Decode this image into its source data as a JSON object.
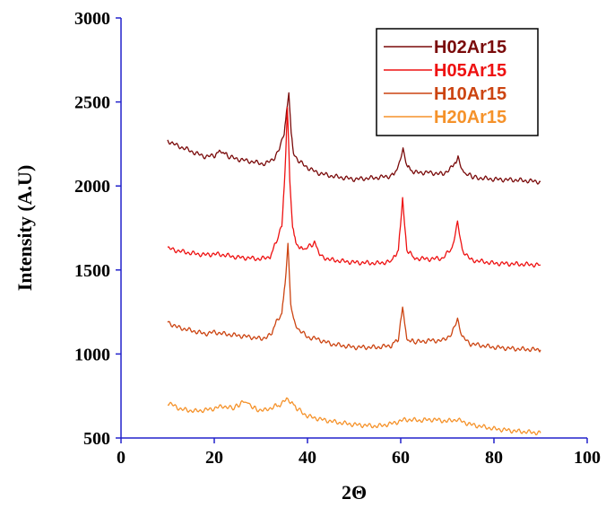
{
  "chart_data": {
    "type": "line",
    "xlabel": "2Θ",
    "ylabel": "Intensity (A.U)",
    "xlim": [
      0,
      100
    ],
    "ylim": [
      500,
      3000
    ],
    "xticks": [
      "0",
      "20",
      "40",
      "60",
      "80",
      "100"
    ],
    "yticks": [
      "500",
      "1000",
      "1500",
      "2000",
      "2500",
      "3000"
    ],
    "grid": false,
    "legend_position": "top-right",
    "axis_color": "#2222cc",
    "series": [
      {
        "name": "H02Ar15",
        "color": "#7a0a0a",
        "x": [
          10,
          12,
          14,
          16,
          18,
          20,
          21.5,
          23,
          25,
          27,
          29,
          31,
          33,
          34,
          35,
          35.5,
          36,
          36.5,
          37,
          38,
          40,
          42,
          45,
          50,
          55,
          58,
          59.5,
          60.5,
          61.5,
          63,
          66,
          69,
          71,
          72.3,
          73.5,
          76,
          80,
          85,
          90
        ],
        "y": [
          2270,
          2240,
          2220,
          2195,
          2175,
          2180,
          2210,
          2175,
          2160,
          2150,
          2140,
          2130,
          2170,
          2220,
          2320,
          2450,
          2560,
          2330,
          2200,
          2150,
          2110,
          2080,
          2060,
          2040,
          2050,
          2060,
          2110,
          2220,
          2110,
          2080,
          2080,
          2070,
          2110,
          2165,
          2080,
          2050,
          2040,
          2035,
          2025
        ]
      },
      {
        "name": "H05Ar15",
        "color": "#ee1111",
        "x": [
          10,
          12,
          15,
          18,
          20,
          22,
          25,
          28,
          30,
          32,
          33.5,
          34.5,
          35.2,
          35.7,
          36.2,
          36.8,
          37.5,
          39,
          41.5,
          43,
          45,
          50,
          55,
          58,
          59.5,
          60.4,
          61.3,
          63,
          66,
          69,
          71,
          72.2,
          73.2,
          75,
          80,
          85,
          90
        ],
        "y": [
          1630,
          1615,
          1600,
          1590,
          1595,
          1590,
          1575,
          1570,
          1565,
          1580,
          1680,
          1760,
          2100,
          2480,
          2050,
          1750,
          1660,
          1620,
          1660,
          1580,
          1560,
          1545,
          1540,
          1550,
          1620,
          1920,
          1620,
          1570,
          1565,
          1570,
          1630,
          1780,
          1620,
          1560,
          1540,
          1535,
          1530
        ]
      },
      {
        "name": "H10Ar15",
        "color": "#cc4411",
        "x": [
          10,
          12,
          15,
          18,
          20,
          22,
          25,
          28,
          30,
          32,
          33.5,
          34.5,
          35.2,
          35.8,
          36.4,
          37,
          38,
          40,
          42,
          45,
          50,
          55,
          58,
          59.5,
          60.4,
          61.3,
          63,
          66,
          69,
          71,
          72.2,
          73.2,
          75,
          80,
          85,
          90
        ],
        "y": [
          1190,
          1160,
          1140,
          1120,
          1130,
          1120,
          1110,
          1100,
          1090,
          1110,
          1200,
          1240,
          1420,
          1660,
          1300,
          1200,
          1150,
          1100,
          1090,
          1060,
          1040,
          1040,
          1050,
          1090,
          1280,
          1090,
          1070,
          1080,
          1080,
          1120,
          1210,
          1100,
          1060,
          1040,
          1030,
          1025
        ]
      },
      {
        "name": "H20Ar15",
        "color": "#f5922a",
        "x": [
          10,
          13,
          16,
          19,
          22,
          24,
          26.5,
          29,
          31,
          33,
          34.5,
          35.5,
          36.5,
          38,
          40,
          43,
          46,
          50,
          55,
          58,
          61,
          64,
          67,
          70,
          72,
          75,
          80,
          85,
          90
        ],
        "y": [
          710,
          670,
          660,
          670,
          690,
          675,
          720,
          670,
          665,
          690,
          700,
          740,
          710,
          670,
          630,
          610,
          595,
          580,
          570,
          585,
          610,
          605,
          610,
          600,
          610,
          580,
          555,
          540,
          530
        ]
      }
    ]
  }
}
